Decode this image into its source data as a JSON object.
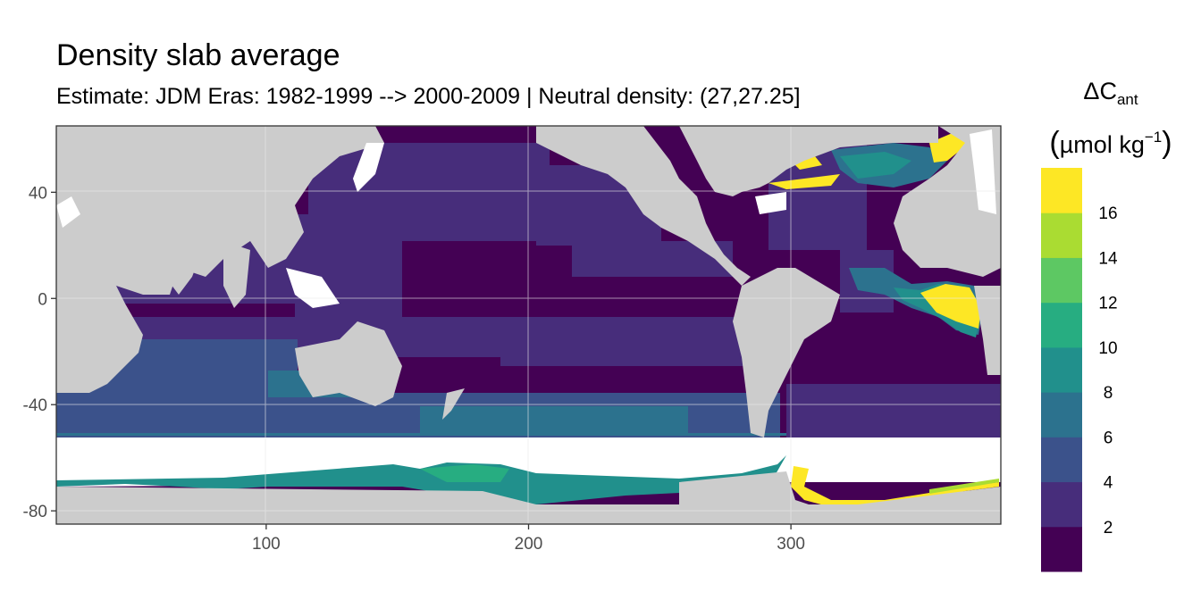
{
  "chart_data": {
    "type": "heatmap",
    "title": "Density slab average",
    "subtitle": "Estimate: JDM Eras: 1982-1999 --> 2000-2009 | Neutral density: (27,27.25]",
    "xlabel": "",
    "ylabel": "",
    "xlim": [
      20,
      380
    ],
    "ylim": [
      -85,
      65
    ],
    "x_ticks": [
      100,
      200,
      300
    ],
    "y_ticks": [
      40,
      0,
      -40,
      -80
    ],
    "x_tick_labels": [
      "100",
      "200",
      "300"
    ],
    "y_tick_labels": [
      "40",
      "0",
      "-40",
      "-80"
    ],
    "grid": true,
    "legend_position": "right",
    "legend": {
      "title_symbol": "ΔC",
      "title_subscript": "ant",
      "title_unit_open": "(",
      "title_unit_text": "µmol kg",
      "title_unit_sup": "−1",
      "title_unit_close": ")",
      "breaks": [
        2,
        4,
        6,
        8,
        10,
        12,
        14,
        16
      ],
      "break_labels": [
        "2",
        "4",
        "6",
        "8",
        "10",
        "12",
        "14",
        "16"
      ],
      "bins": [
        {
          "range": [
            0,
            2
          ],
          "color": "#440154"
        },
        {
          "range": [
            2,
            4
          ],
          "color": "#472D7B"
        },
        {
          "range": [
            4,
            6
          ],
          "color": "#3B528B"
        },
        {
          "range": [
            6,
            8
          ],
          "color": "#2C728E"
        },
        {
          "range": [
            8,
            10
          ],
          "color": "#21908C"
        },
        {
          "range": [
            10,
            12
          ],
          "color": "#27AD81"
        },
        {
          "range": [
            12,
            14
          ],
          "color": "#5DC863"
        },
        {
          "range": [
            14,
            16
          ],
          "color": "#AADC32"
        },
        {
          "range": [
            16,
            18
          ],
          "color": "#FDE725"
        }
      ]
    },
    "colors": {
      "land": "#CCCCCC",
      "no_data": "#FFFFFF",
      "panel_border": "#333333"
    }
  }
}
